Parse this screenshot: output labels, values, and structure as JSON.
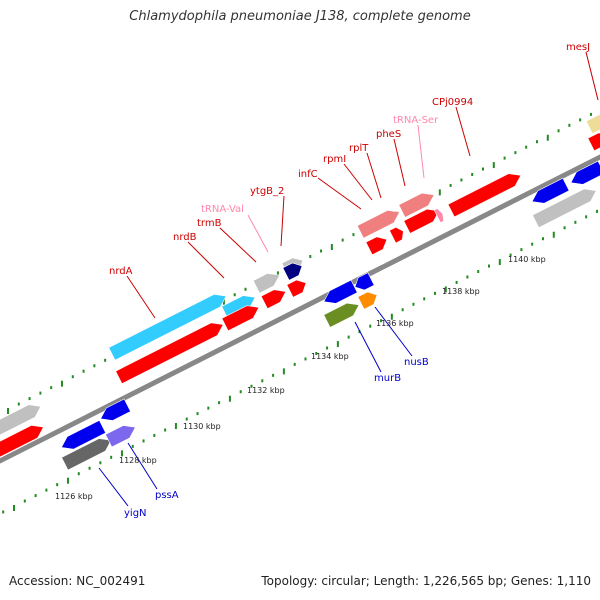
{
  "title": "Chlamydophila pneumoniae J138, complete genome",
  "footer": {
    "accession": "Accession: NC_002491",
    "stats": "Topology: circular; Length: 1,226,565 bp; Genes: 1,110"
  },
  "colors": {
    "red": "#ff0000",
    "lightred": "#f08080",
    "cyan": "#33ccff",
    "blue": "#0000ee",
    "gray": "#c0c0c0",
    "darkgray": "#666666",
    "navy": "#000080",
    "olive": "#6b8e23",
    "orange": "#ff8c00",
    "purple": "#7b68ee",
    "yellow": "#eedd99",
    "pink_label": "#ff88aa",
    "red_label": "#cc0000",
    "blue_label": "#0000cc",
    "tick": "#228b22"
  },
  "scale_labels": [
    "1126 kbp",
    "1128 kbp",
    "1130 kbp",
    "1132 kbp",
    "1134 kbp",
    "1136 kbp",
    "1138 kbp",
    "1140 kbp"
  ],
  "gene_labels": {
    "nrdA": "nrdA",
    "nrdB": "nrdB",
    "trmB": "trmB",
    "trna_val": "tRNA-Val",
    "ytgB_2": "ytgB_2",
    "infC": "infC",
    "rpml": "rpmI",
    "rplT": "rplT",
    "pheS": "pheS",
    "trna_ser": "tRNA-Ser",
    "cpj0994": "CPj0994",
    "mesJ": "mesJ",
    "murB": "murB",
    "nusB": "nusB",
    "pssA": "pssA",
    "yigN": "yigN"
  }
}
